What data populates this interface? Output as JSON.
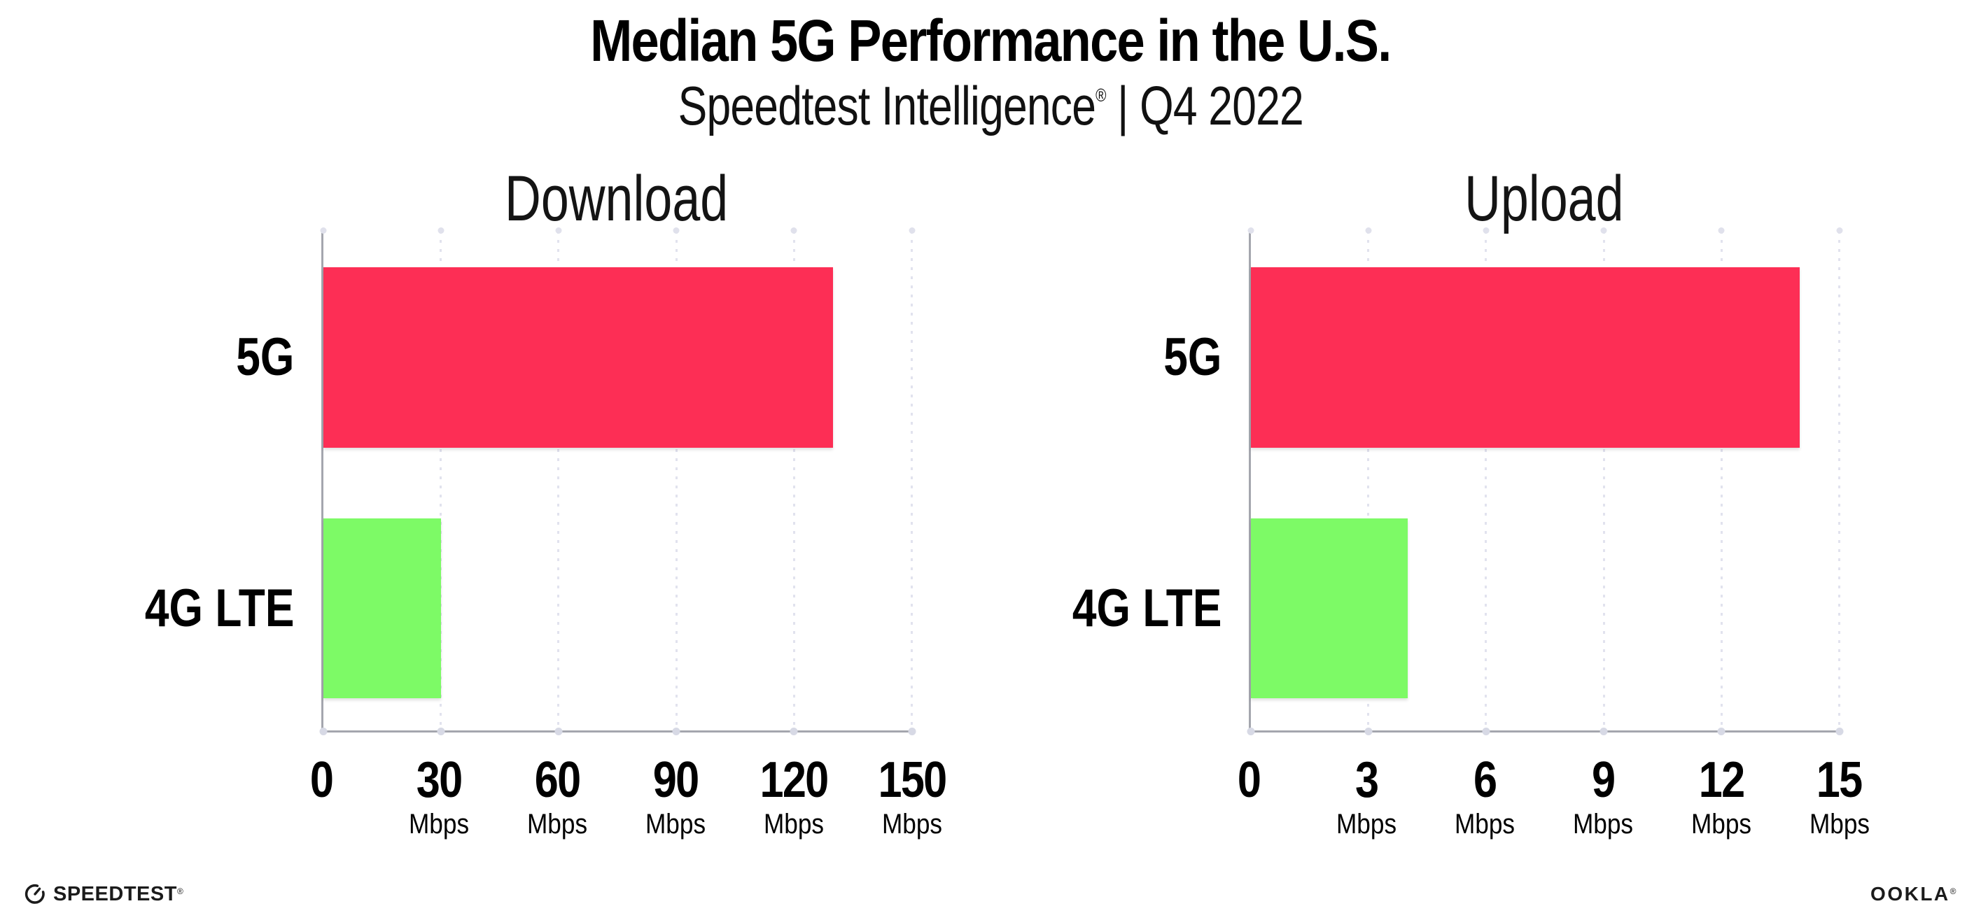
{
  "header": {
    "title": "Median 5G Performance in the U.S.",
    "subtitle_brand": "Speedtest Intelligence",
    "subtitle_reg": "®",
    "subtitle_rest": " | Q4 2022"
  },
  "chart_data": [
    {
      "type": "bar",
      "orientation": "horizontal",
      "title": "Download",
      "categories": [
        "5G",
        "4G LTE"
      ],
      "values": [
        130,
        30
      ],
      "unit": "Mbps",
      "xlabel": "",
      "ylabel": "",
      "xlim": [
        0,
        150
      ],
      "xticks": [
        0,
        30,
        60,
        90,
        120,
        150
      ],
      "bar_colors": [
        "#fd2e55",
        "#7dfa66"
      ],
      "grid": "dotted-vertical-gridlines",
      "legend": "none"
    },
    {
      "type": "bar",
      "orientation": "horizontal",
      "title": "Upload",
      "categories": [
        "5G",
        "4G LTE"
      ],
      "values": [
        14,
        4
      ],
      "unit": "Mbps",
      "xlabel": "",
      "ylabel": "",
      "xlim": [
        0,
        15
      ],
      "xticks": [
        0,
        3,
        6,
        9,
        12,
        15
      ],
      "bar_colors": [
        "#fd2e55",
        "#7dfa66"
      ],
      "grid": "dotted-vertical-gridlines",
      "legend": "none"
    }
  ],
  "footer": {
    "speedtest_label": "SPEEDTEST",
    "speedtest_reg": "®",
    "ookla_label": "OOKLA",
    "ookla_reg": "®"
  },
  "colors": {
    "bar_5g": "#fd2e55",
    "bar_4g_lte": "#7dfa66",
    "axis": "#a4a6ae",
    "gridline": "#e1e2ee",
    "text": "#000000"
  }
}
